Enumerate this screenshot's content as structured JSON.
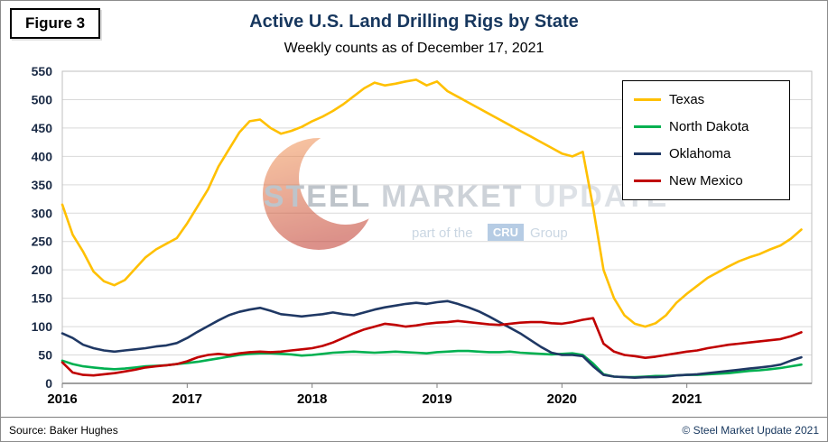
{
  "figure_label": "Figure 3",
  "footer": {
    "source": "Source: Baker Hughes",
    "copyright": "© Steel Market Update 2021"
  },
  "watermark": {
    "steel": "STEEL",
    "market": "MARKET",
    "update": "UPDATE",
    "part_of": "part of the",
    "cru": "CRU",
    "group": "Group",
    "crescent_color_top": "#F59A57",
    "crescent_color_bottom": "#C0392B",
    "cru_box_color": "#7BA3CE"
  },
  "chart_data": {
    "type": "line",
    "title": "Active U.S. Land Drilling Rigs by State",
    "subtitle": "Weekly counts as of December 17, 2021",
    "xlabel": "",
    "ylabel": "",
    "ylim": [
      0,
      550
    ],
    "y_tick_step": 50,
    "x_range": [
      2016,
      2022
    ],
    "x_label_years": [
      2016,
      2017,
      2018,
      2019,
      2020,
      2021
    ],
    "x_start": 2016.0,
    "points_per_year": 12,
    "grid": true,
    "gridline_color": "#D9D9D9",
    "legend_position": "top-right",
    "series": [
      {
        "name": "Texas",
        "color": "#FFC000",
        "values": [
          315,
          262,
          232,
          197,
          180,
          173,
          182,
          202,
          222,
          236,
          246,
          256,
          282,
          312,
          342,
          382,
          412,
          442,
          462,
          465,
          450,
          440,
          445,
          452,
          462,
          470,
          480,
          492,
          506,
          520,
          530,
          525,
          528,
          532,
          535,
          525,
          532,
          515,
          505,
          495,
          485,
          475,
          465,
          455,
          445,
          435,
          425,
          415,
          405,
          400,
          408,
          310,
          200,
          150,
          120,
          105,
          100,
          106,
          120,
          142,
          158,
          172,
          186,
          196,
          206,
          215,
          222,
          228,
          236,
          243,
          255,
          271
        ]
      },
      {
        "name": "North Dakota",
        "color": "#00B050",
        "values": [
          40,
          34,
          30,
          28,
          26,
          25,
          26,
          28,
          30,
          31,
          32,
          34,
          36,
          38,
          41,
          44,
          47,
          50,
          52,
          53,
          53,
          52,
          51,
          49,
          50,
          52,
          54,
          55,
          56,
          55,
          54,
          55,
          56,
          55,
          54,
          53,
          55,
          56,
          57,
          57,
          56,
          55,
          55,
          56,
          54,
          53,
          52,
          51,
          52,
          53,
          50,
          35,
          16,
          12,
          11,
          11,
          12,
          13,
          13,
          14,
          15,
          15,
          16,
          17,
          18,
          20,
          22,
          23,
          25,
          27,
          30,
          33
        ]
      },
      {
        "name": "Oklahoma",
        "color": "#1F3864",
        "values": [
          88,
          80,
          68,
          62,
          58,
          56,
          58,
          60,
          62,
          65,
          67,
          71,
          80,
          91,
          101,
          111,
          120,
          126,
          130,
          133,
          128,
          122,
          120,
          118,
          120,
          122,
          125,
          122,
          120,
          125,
          130,
          134,
          137,
          140,
          142,
          140,
          143,
          145,
          140,
          134,
          127,
          118,
          108,
          98,
          88,
          76,
          64,
          54,
          50,
          50,
          48,
          30,
          15,
          12,
          11,
          10,
          11,
          11,
          12,
          14,
          15,
          16,
          18,
          20,
          22,
          24,
          26,
          28,
          30,
          33,
          40,
          46
        ]
      },
      {
        "name": "New Mexico",
        "color": "#C00000",
        "values": [
          37,
          19,
          15,
          14,
          16,
          18,
          21,
          24,
          28,
          30,
          32,
          34,
          39,
          46,
          50,
          52,
          50,
          53,
          55,
          56,
          55,
          56,
          58,
          60,
          62,
          66,
          72,
          80,
          88,
          95,
          100,
          105,
          103,
          100,
          102,
          105,
          107,
          108,
          110,
          108,
          106,
          104,
          103,
          105,
          107,
          108,
          108,
          106,
          105,
          108,
          112,
          115,
          70,
          56,
          50,
          48,
          45,
          47,
          50,
          53,
          56,
          58,
          62,
          65,
          68,
          70,
          72,
          74,
          76,
          78,
          83,
          90
        ]
      }
    ]
  }
}
